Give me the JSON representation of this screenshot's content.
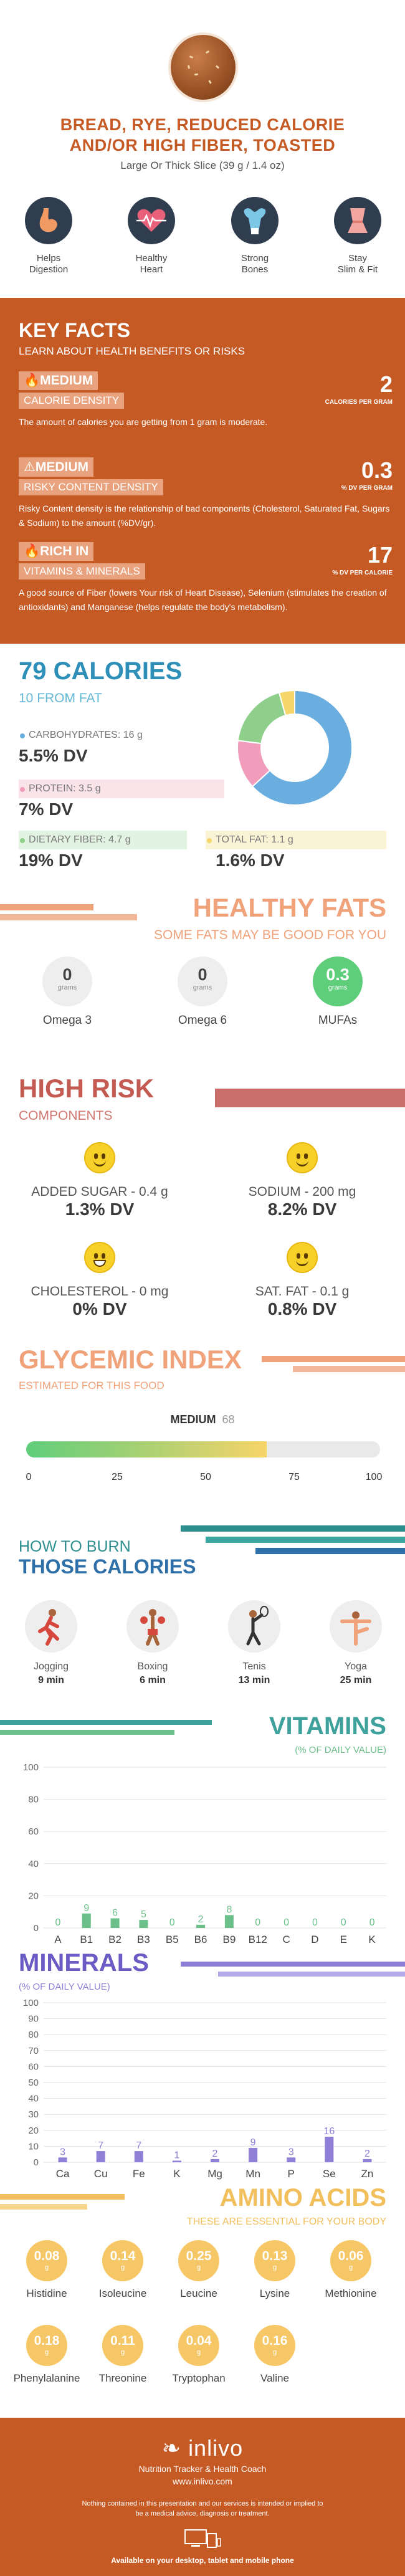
{
  "header": {
    "title_line1": "BREAD, RYE, REDUCED CALORIE",
    "title_line2": "AND/OR HIGH FIBER, TOASTED",
    "serving": "Large Or Thick Slice (39 g / 1.4 oz)"
  },
  "benefits": [
    {
      "line1": "Helps",
      "line2": "Digestion",
      "icon": "stomach-icon",
      "color": "#f29a63"
    },
    {
      "line1": "Healthy",
      "line2": "Heart",
      "icon": "heart-icon",
      "color": "#e8607a"
    },
    {
      "line1": "Strong",
      "line2": "Bones",
      "icon": "bone-icon",
      "color": "#7cc6e6"
    },
    {
      "line1": "Stay",
      "line2": "Slim & Fit",
      "icon": "scale-icon",
      "color": "#f2a6a0"
    }
  ],
  "key_facts": {
    "title": "KEY FACTS",
    "subtitle": "LEARN ABOUT HEALTH BENEFITS OR RISKS",
    "facts": [
      {
        "level": "MEDIUM",
        "name": "CALORIE DENSITY",
        "value": "2",
        "unit": "CALORIES PER GRAM",
        "desc": "The amount of calories you are getting from 1 gram is moderate."
      },
      {
        "level": "MEDIUM",
        "name": "RISKY CONTENT DENSITY",
        "value": "0.3",
        "unit": "% DV PER GRAM",
        "desc": "Risky Content density is the relationship of bad components (Cholesterol, Saturated Fat, Sugars & Sodium) to the amount (%DV/gr)."
      },
      {
        "level": "RICH  IN",
        "name": "VITAMINS & MINERALS",
        "value": "17",
        "unit": "% DV PER CALORIE",
        "desc": "A good source of Fiber (lowers Your risk of Heart Disease), Selenium (stimulates the creation of antioxidants) and Manganese (helps regulate the body's metabolism)."
      }
    ]
  },
  "calories": {
    "title": "79 CALORIES",
    "subtitle": "10 FROM FAT",
    "carbs_label": "CARBOHYDRATES: 16 g",
    "carbs_dv": "5.5% DV",
    "protein_label": "PROTEIN: 3.5 g",
    "protein_dv": "7% DV",
    "fiber_label": "DIETARY FIBER: 4.7 g",
    "fiber_dv": "19% DV",
    "fat_label": "TOTAL FAT: 1.1 g",
    "fat_dv": "1.6% DV",
    "colors": {
      "carbs": "#6aaee0",
      "protein": "#f29cbc",
      "fiber": "#8ed08b",
      "fat": "#f5d66a"
    }
  },
  "chart_data": [
    {
      "type": "pie",
      "categories": [
        "CARBOHYDRATES",
        "PROTEIN",
        "DIETARY FIBER",
        "TOTAL FAT"
      ],
      "values": [
        64.9,
        14.2,
        19.1,
        4.5
      ]
    },
    {
      "type": "bar",
      "categories": [
        "A",
        "B1",
        "B2",
        "B3",
        "B5",
        "B6",
        "B9",
        "B12",
        "C",
        "D",
        "E",
        "K"
      ],
      "values": [
        0,
        9,
        6,
        5,
        0,
        2,
        8,
        0,
        0,
        0,
        0,
        0
      ],
      "ylim": [
        0,
        100
      ],
      "yticks": [
        0,
        20,
        40,
        60,
        80,
        100
      ]
    },
    {
      "type": "bar",
      "categories": [
        "Ca",
        "Cu",
        "Fe",
        "K",
        "Mg",
        "Mn",
        "P",
        "Se",
        "Zn"
      ],
      "values": [
        3,
        7,
        7,
        1,
        2,
        9,
        3,
        16,
        2
      ],
      "ylim": [
        0,
        100
      ],
      "yticks": [
        0,
        10,
        20,
        30,
        40,
        50,
        60,
        70,
        80,
        90,
        100
      ]
    }
  ],
  "healthy_fats": {
    "title": "HEALTHY FATS",
    "subtitle": "SOME FATS MAY BE GOOD FOR YOU",
    "unit": "grams",
    "items": [
      {
        "value": "0",
        "name": "Omega 3"
      },
      {
        "value": "0",
        "name": "Omega 6"
      },
      {
        "value": "0.3",
        "name": "MUFAs"
      }
    ]
  },
  "high_risk": {
    "title": "HIGH RISK",
    "subtitle": "COMPONENTS",
    "items": [
      {
        "label": "ADDED SUGAR - 0.4 g",
        "dv": "1.3% DV"
      },
      {
        "label": "SODIUM - 200 mg",
        "dv": "8.2% DV"
      },
      {
        "label": "CHOLESTEROL - 0 mg",
        "dv": "0% DV"
      },
      {
        "label": "SAT. FAT - 0.1 g",
        "dv": "0.8% DV"
      }
    ]
  },
  "glycemic": {
    "title": "GLYCEMIC INDEX",
    "subtitle": "ESTIMATED FOR THIS FOOD",
    "level": "MEDIUM",
    "value": "68",
    "fraction": 0.68,
    "ticks": [
      "0",
      "25",
      "50",
      "75",
      "100"
    ]
  },
  "burn": {
    "title_line1": "HOW TO BURN",
    "title_line2": "THOSE CALORIES",
    "activities": [
      {
        "name": "Jogging",
        "time": "9 min",
        "icon": "jogging-icon"
      },
      {
        "name": "Boxing",
        "time": "6 min",
        "icon": "boxing-icon"
      },
      {
        "name": "Tenis",
        "time": "13 min",
        "icon": "tennis-icon"
      },
      {
        "name": "Yoga",
        "time": "25 min",
        "icon": "yoga-icon"
      }
    ]
  },
  "vitamins": {
    "title": "VITAMINS",
    "subtitle": "(% OF DAILY VALUE)",
    "color": "#6bc08a"
  },
  "minerals": {
    "title": "MINERALS",
    "subtitle": "(% OF DAILY VALUE)",
    "color": "#8f7fd6"
  },
  "amino": {
    "title": "AMINO ACIDS",
    "subtitle": "THESE ARE ESSENTIAL FOR YOUR BODY",
    "unit": "g",
    "items": [
      {
        "value": "0.08",
        "name": "Histidine"
      },
      {
        "value": "0.14",
        "name": "Isoleucine"
      },
      {
        "value": "0.25",
        "name": "Leucine"
      },
      {
        "value": "0.13",
        "name": "Lysine"
      },
      {
        "value": "0.06",
        "name": "Methionine"
      },
      {
        "value": "0.18",
        "name": "Phenylalanine"
      },
      {
        "value": "0.11",
        "name": "Threonine"
      },
      {
        "value": "0.04",
        "name": "Tryptophan"
      },
      {
        "value": "0.16",
        "name": "Valine"
      }
    ]
  },
  "footer": {
    "brand": "inlivo",
    "tagline": "Nutrition Tracker & Health Coach",
    "site": "www.inlivo.com",
    "disclaimer": "Nothing contained in this presentation and our services is intended or implied to be a medical advice, diagnosis or treatment.",
    "available": "Available on your desktop, tablet and mobile phone"
  }
}
